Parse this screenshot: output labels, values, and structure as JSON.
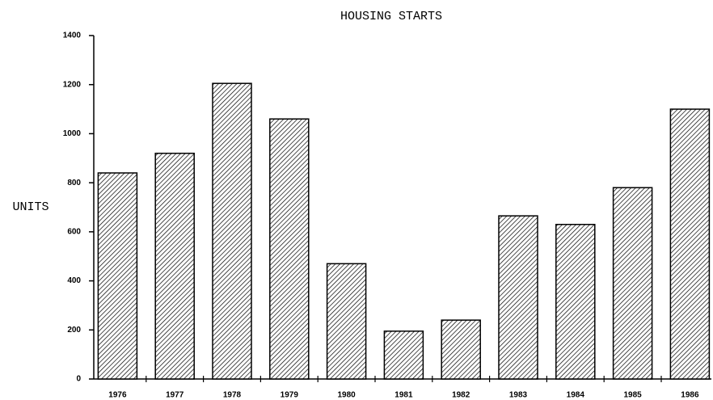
{
  "chart_data": {
    "type": "bar",
    "title": "HOUSING STARTS",
    "y_label": "UNITS",
    "categories": [
      "1976",
      "1977",
      "1978",
      "1979",
      "1980",
      "1981",
      "1982",
      "1983",
      "1984",
      "1985",
      "1986"
    ],
    "values": [
      840,
      920,
      1205,
      1060,
      470,
      195,
      240,
      665,
      630,
      780,
      1100
    ],
    "color": "#000000",
    "ylim": [
      0,
      1400
    ],
    "yticks": [
      0,
      200,
      400,
      600,
      800,
      1000,
      1200,
      1400
    ],
    "grid": false
  }
}
